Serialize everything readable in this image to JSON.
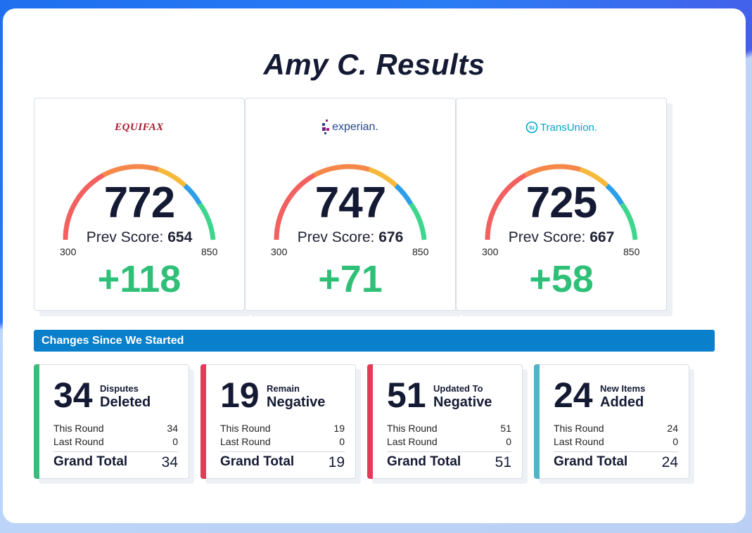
{
  "page": {
    "title": "Amy C. Results"
  },
  "bureaus": [
    {
      "name": "EQUIFAX",
      "score": "772",
      "prev_label": "Prev Score:",
      "prev_score": "654",
      "min": "300",
      "max": "850",
      "delta": "+118",
      "brand_color": "#a6192e"
    },
    {
      "name": "experian.",
      "score": "747",
      "prev_label": "Prev Score:",
      "prev_score": "676",
      "min": "300",
      "max": "850",
      "delta": "+71",
      "brand_color": "#26478d"
    },
    {
      "name": "TransUnion.",
      "score": "725",
      "prev_label": "Prev Score:",
      "prev_score": "667",
      "min": "300",
      "max": "850",
      "delta": "+58",
      "brand_color": "#00a6ca"
    }
  ],
  "changes": {
    "header": "Changes Since We Started",
    "cards": [
      {
        "count": "34",
        "label_top": "Disputes",
        "label_bottom": "Deleted",
        "this_round_label": "This Round",
        "this_round": "34",
        "last_round_label": "Last Round",
        "last_round": "0",
        "total_label": "Grand Total",
        "total": "34",
        "color": "#3dbb7c"
      },
      {
        "count": "19",
        "label_top": "Remain",
        "label_bottom": "Negative",
        "this_round_label": "This Round",
        "this_round": "19",
        "last_round_label": "Last Round",
        "last_round": "0",
        "total_label": "Grand Total",
        "total": "19",
        "color": "#e33a57"
      },
      {
        "count": "51",
        "label_top": "Updated To",
        "label_bottom": "Negative",
        "this_round_label": "This Round",
        "this_round": "51",
        "last_round_label": "Last Round",
        "last_round": "0",
        "total_label": "Grand Total",
        "total": "51",
        "color": "#e33a57"
      },
      {
        "count": "24",
        "label_top": "New Items",
        "label_bottom": "Added",
        "this_round_label": "This Round",
        "this_round": "24",
        "last_round_label": "Last Round",
        "last_round": "0",
        "total_label": "Grand Total",
        "total": "24",
        "color": "#4fb3c9"
      }
    ]
  },
  "colors": {
    "positive": "#2fc078",
    "accent_bar": "#0a7fcc",
    "gauge": [
      "#f26060",
      "#f5874a",
      "#f6b93b",
      "#2d9ee8",
      "#3ed68c"
    ]
  },
  "icons": [
    "experian-dots-icon",
    "transunion-logo-icon"
  ]
}
